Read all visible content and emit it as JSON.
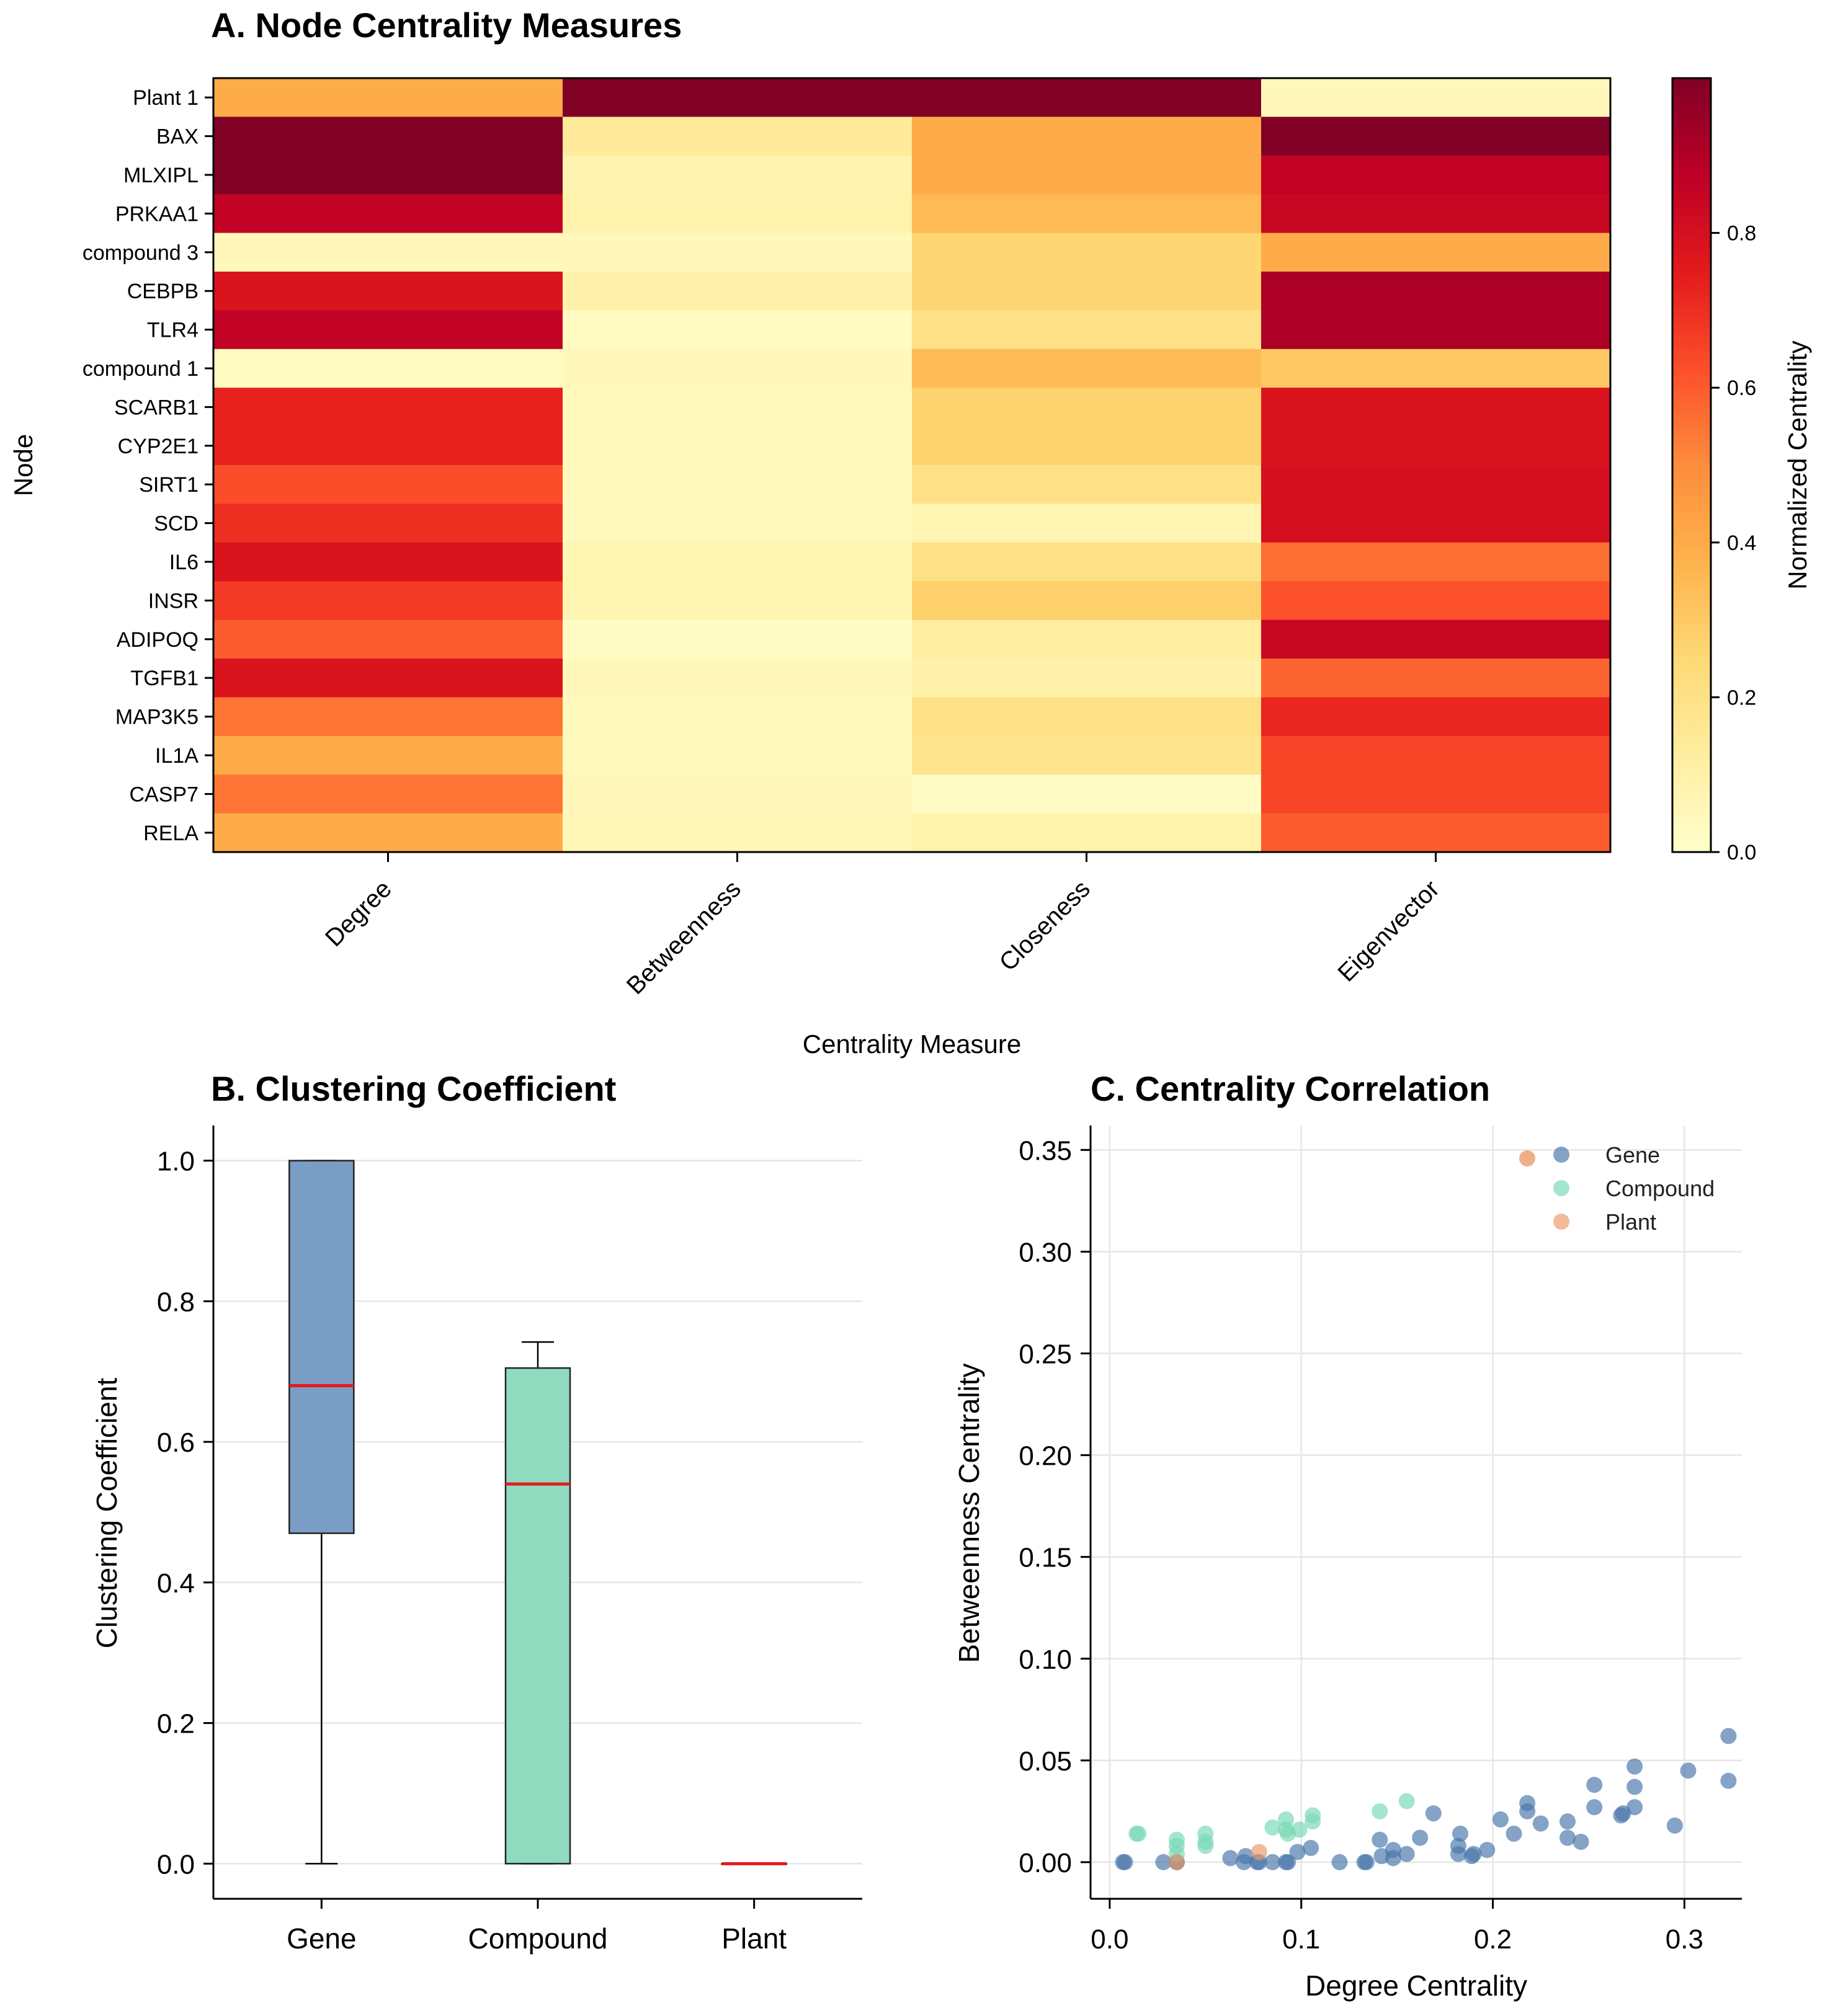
{
  "chart_data": [
    {
      "type": "heatmap",
      "title": "A. Node Centrality Measures",
      "xlabel": "Centrality Measure",
      "ylabel": "Node",
      "columns": [
        "Degree",
        "Betweenness",
        "Closeness",
        "Eigenvector"
      ],
      "rows": [
        "Plant 1",
        "BAX",
        "MLXIPL",
        "PRKAA1",
        "compound 3",
        "CEBPB",
        "TLR4",
        "compound 1",
        "SCARB1",
        "CYP2E1",
        "SIRT1",
        "SCD",
        "IL6",
        "INSR",
        "ADIPOQ",
        "TGFB1",
        "MAP3K5",
        "IL1A",
        "CASP7",
        "RELA"
      ],
      "values": [
        [
          0.4,
          1.0,
          1.0,
          0.05
        ],
        [
          1.0,
          0.14,
          0.4,
          1.0
        ],
        [
          1.0,
          0.08,
          0.4,
          0.86
        ],
        [
          0.86,
          0.09,
          0.35,
          0.84
        ],
        [
          0.05,
          0.05,
          0.26,
          0.4
        ],
        [
          0.78,
          0.1,
          0.26,
          0.91
        ],
        [
          0.86,
          0.03,
          0.2,
          0.91
        ],
        [
          0.03,
          0.05,
          0.35,
          0.3
        ],
        [
          0.73,
          0.04,
          0.27,
          0.78
        ],
        [
          0.73,
          0.04,
          0.27,
          0.78
        ],
        [
          0.63,
          0.04,
          0.2,
          0.8
        ],
        [
          0.7,
          0.04,
          0.07,
          0.8
        ],
        [
          0.78,
          0.07,
          0.2,
          0.56
        ],
        [
          0.67,
          0.07,
          0.28,
          0.62
        ],
        [
          0.6,
          0.02,
          0.12,
          0.84
        ],
        [
          0.78,
          0.05,
          0.1,
          0.58
        ],
        [
          0.55,
          0.04,
          0.2,
          0.72
        ],
        [
          0.4,
          0.04,
          0.18,
          0.65
        ],
        [
          0.55,
          0.05,
          0.02,
          0.65
        ],
        [
          0.4,
          0.06,
          0.09,
          0.6
        ]
      ],
      "colorbar": {
        "label": "Normalized Centrality",
        "ticks": [
          "0.0",
          "0.2",
          "0.4",
          "0.6",
          "0.8"
        ],
        "range": [
          0,
          1
        ]
      }
    },
    {
      "type": "box",
      "title": "B. Clustering Coefficient",
      "xlabel": "",
      "ylabel": "Clustering Coefficient",
      "ylim": [
        -0.05,
        1.05
      ],
      "yticks": [
        "0.0",
        "0.2",
        "0.4",
        "0.6",
        "0.8",
        "1.0"
      ],
      "grid": true,
      "groups": [
        {
          "name": "Gene",
          "color": "#7a9dc6",
          "whisker_low": 0.0,
          "q1": 0.47,
          "median": 0.68,
          "q3": 1.0,
          "whisker_high": 1.0
        },
        {
          "name": "Compound",
          "color": "#8fdbbf",
          "whisker_low": 0.0,
          "q1": 0.0,
          "median": 0.54,
          "q3": 0.705,
          "whisker_high": 0.742
        },
        {
          "name": "Plant",
          "color": "#f4a582",
          "whisker_low": 0.0,
          "q1": 0.0,
          "median": 0.0,
          "q3": 0.0,
          "whisker_high": 0.0
        }
      ],
      "median_color": "#e8191c"
    },
    {
      "type": "scatter",
      "title": "C. Centrality Correlation",
      "xlabel": "Degree Centrality",
      "ylabel": "Betweenness Centrality",
      "xlim": [
        -0.01,
        0.33
      ],
      "ylim": [
        -0.018,
        0.362
      ],
      "xticks": [
        "0.0",
        "0.1",
        "0.2",
        "0.3"
      ],
      "yticks": [
        "0.00",
        "0.05",
        "0.10",
        "0.15",
        "0.20",
        "0.25",
        "0.30",
        "0.35"
      ],
      "grid": true,
      "legend": "top-right",
      "series": [
        {
          "name": "Gene",
          "color": "#4a78ab",
          "points": [
            [
              0.007,
              0.0
            ],
            [
              0.008,
              0.0
            ],
            [
              0.028,
              0.0
            ],
            [
              0.035,
              0.0
            ],
            [
              0.035,
              0.0
            ],
            [
              0.063,
              0.002
            ],
            [
              0.07,
              0.0
            ],
            [
              0.071,
              0.003
            ],
            [
              0.077,
              0.0
            ],
            [
              0.078,
              0.0
            ],
            [
              0.085,
              0.0
            ],
            [
              0.092,
              0.0
            ],
            [
              0.093,
              0.0
            ],
            [
              0.098,
              0.005
            ],
            [
              0.105,
              0.007
            ],
            [
              0.12,
              0.0
            ],
            [
              0.133,
              0.0
            ],
            [
              0.134,
              0.0
            ],
            [
              0.141,
              0.011
            ],
            [
              0.142,
              0.003
            ],
            [
              0.148,
              0.006
            ],
            [
              0.148,
              0.002
            ],
            [
              0.155,
              0.004
            ],
            [
              0.162,
              0.012
            ],
            [
              0.169,
              0.024
            ],
            [
              0.182,
              0.004
            ],
            [
              0.182,
              0.008
            ],
            [
              0.183,
              0.014
            ],
            [
              0.189,
              0.003
            ],
            [
              0.19,
              0.004
            ],
            [
              0.197,
              0.006
            ],
            [
              0.204,
              0.021
            ],
            [
              0.211,
              0.014
            ],
            [
              0.218,
              0.029
            ],
            [
              0.218,
              0.025
            ],
            [
              0.225,
              0.019
            ],
            [
              0.239,
              0.02
            ],
            [
              0.239,
              0.012
            ],
            [
              0.246,
              0.01
            ],
            [
              0.253,
              0.027
            ],
            [
              0.253,
              0.038
            ],
            [
              0.267,
              0.023
            ],
            [
              0.268,
              0.024
            ],
            [
              0.274,
              0.047
            ],
            [
              0.274,
              0.037
            ],
            [
              0.274,
              0.027
            ],
            [
              0.295,
              0.018
            ],
            [
              0.302,
              0.045
            ],
            [
              0.323,
              0.062
            ],
            [
              0.323,
              0.04
            ]
          ]
        },
        {
          "name": "Compound",
          "color": "#79d8b6",
          "points": [
            [
              0.014,
              0.014
            ],
            [
              0.015,
              0.014
            ],
            [
              0.035,
              0.004
            ],
            [
              0.035,
              0.008
            ],
            [
              0.035,
              0.011
            ],
            [
              0.05,
              0.008
            ],
            [
              0.05,
              0.01
            ],
            [
              0.05,
              0.014
            ],
            [
              0.085,
              0.017
            ],
            [
              0.092,
              0.021
            ],
            [
              0.092,
              0.016
            ],
            [
              0.093,
              0.014
            ],
            [
              0.099,
              0.016
            ],
            [
              0.106,
              0.023
            ],
            [
              0.106,
              0.02
            ],
            [
              0.141,
              0.025
            ],
            [
              0.155,
              0.03
            ]
          ]
        },
        {
          "name": "Plant",
          "color": "#ec9a6c",
          "points": [
            [
              0.035,
              0.0
            ],
            [
              0.078,
              0.005
            ]
          ]
        }
      ]
    }
  ]
}
